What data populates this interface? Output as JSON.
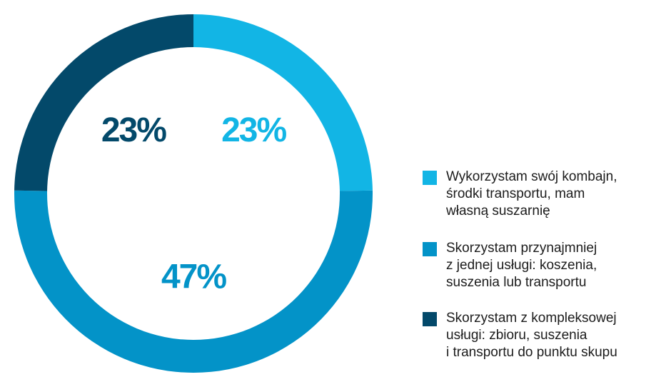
{
  "chart_data": {
    "type": "donut",
    "series": [
      {
        "name": "Wykorzystam swój kombajn,\nśrodki transportu, mam\nwłasną suszarnię",
        "color": "#12b5e5",
        "values": [
          23
        ],
        "value_labels": [
          "23%"
        ]
      },
      {
        "name": "Skorzystam przynajmniej\nz jednej usługi: koszenia,\nsuszenia lub transportu",
        "color": "#0393c8",
        "values": [
          47
        ],
        "value_labels": [
          "47%"
        ]
      },
      {
        "name": "Skorzystam z kompleksowej\nusługi: zbioru, suszenia\ni transportu do punktu skupu",
        "color": "#03496a",
        "values": [
          23
        ],
        "value_labels": [
          "23%"
        ]
      }
    ],
    "legend": "right"
  }
}
